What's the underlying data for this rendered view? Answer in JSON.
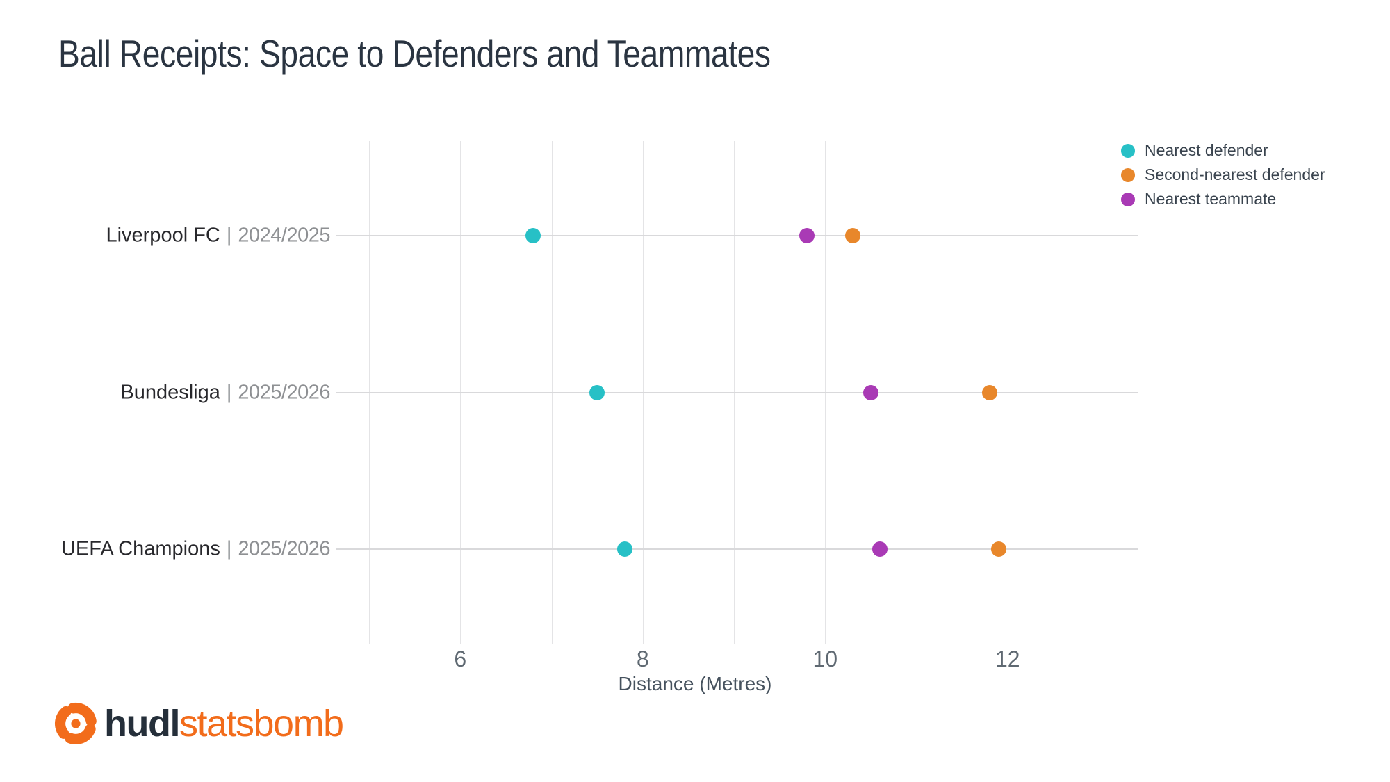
{
  "title": "Ball Receipts: Space to Defenders and Teammates",
  "colors": {
    "teal": "#27C0C6",
    "orange": "#E8872B",
    "purple": "#A93AB5",
    "title_text": "#2A3441",
    "team_text": "#28282C",
    "season_text": "#8E9093",
    "tick_text": "#5F6972",
    "axis_label_text": "#46525E",
    "gridline": "#E4E4E6",
    "row_line": "#D9D9DB",
    "logo_navy": "#252F3A",
    "logo_orange": "#F26C1B"
  },
  "chart_data": {
    "type": "scatter",
    "subtype": "horizontal-dot-plot",
    "title": "Ball Receipts: Space to Defenders and Teammates",
    "xlabel": "Distance (Metres)",
    "ylabel": "",
    "xlim": [
      5,
      13
    ],
    "xticks": [
      6,
      8,
      10,
      12
    ],
    "gridlines_x": [
      5,
      6,
      7,
      8,
      9,
      10,
      11,
      12,
      13
    ],
    "grid": "vertical",
    "legend_position": "top-right",
    "categories": [
      {
        "team": "Liverpool FC",
        "separator": "|",
        "season": "2024/2025"
      },
      {
        "team": "Bundesliga",
        "separator": "|",
        "season": "2025/2026"
      },
      {
        "team": "UEFA Champions",
        "separator": "|",
        "season": "2025/2026"
      }
    ],
    "series": [
      {
        "name": "Nearest defender",
        "color": "#27C0C6",
        "values": [
          6.8,
          7.5,
          7.8
        ]
      },
      {
        "name": "Second-nearest defender",
        "color": "#E8872B",
        "values": [
          10.3,
          11.8,
          11.9
        ]
      },
      {
        "name": "Nearest teammate",
        "color": "#A93AB5",
        "values": [
          9.8,
          10.5,
          10.6
        ]
      }
    ]
  },
  "footer": {
    "logo_hudl": "hudl",
    "logo_statsbomb": "statsbomb"
  }
}
